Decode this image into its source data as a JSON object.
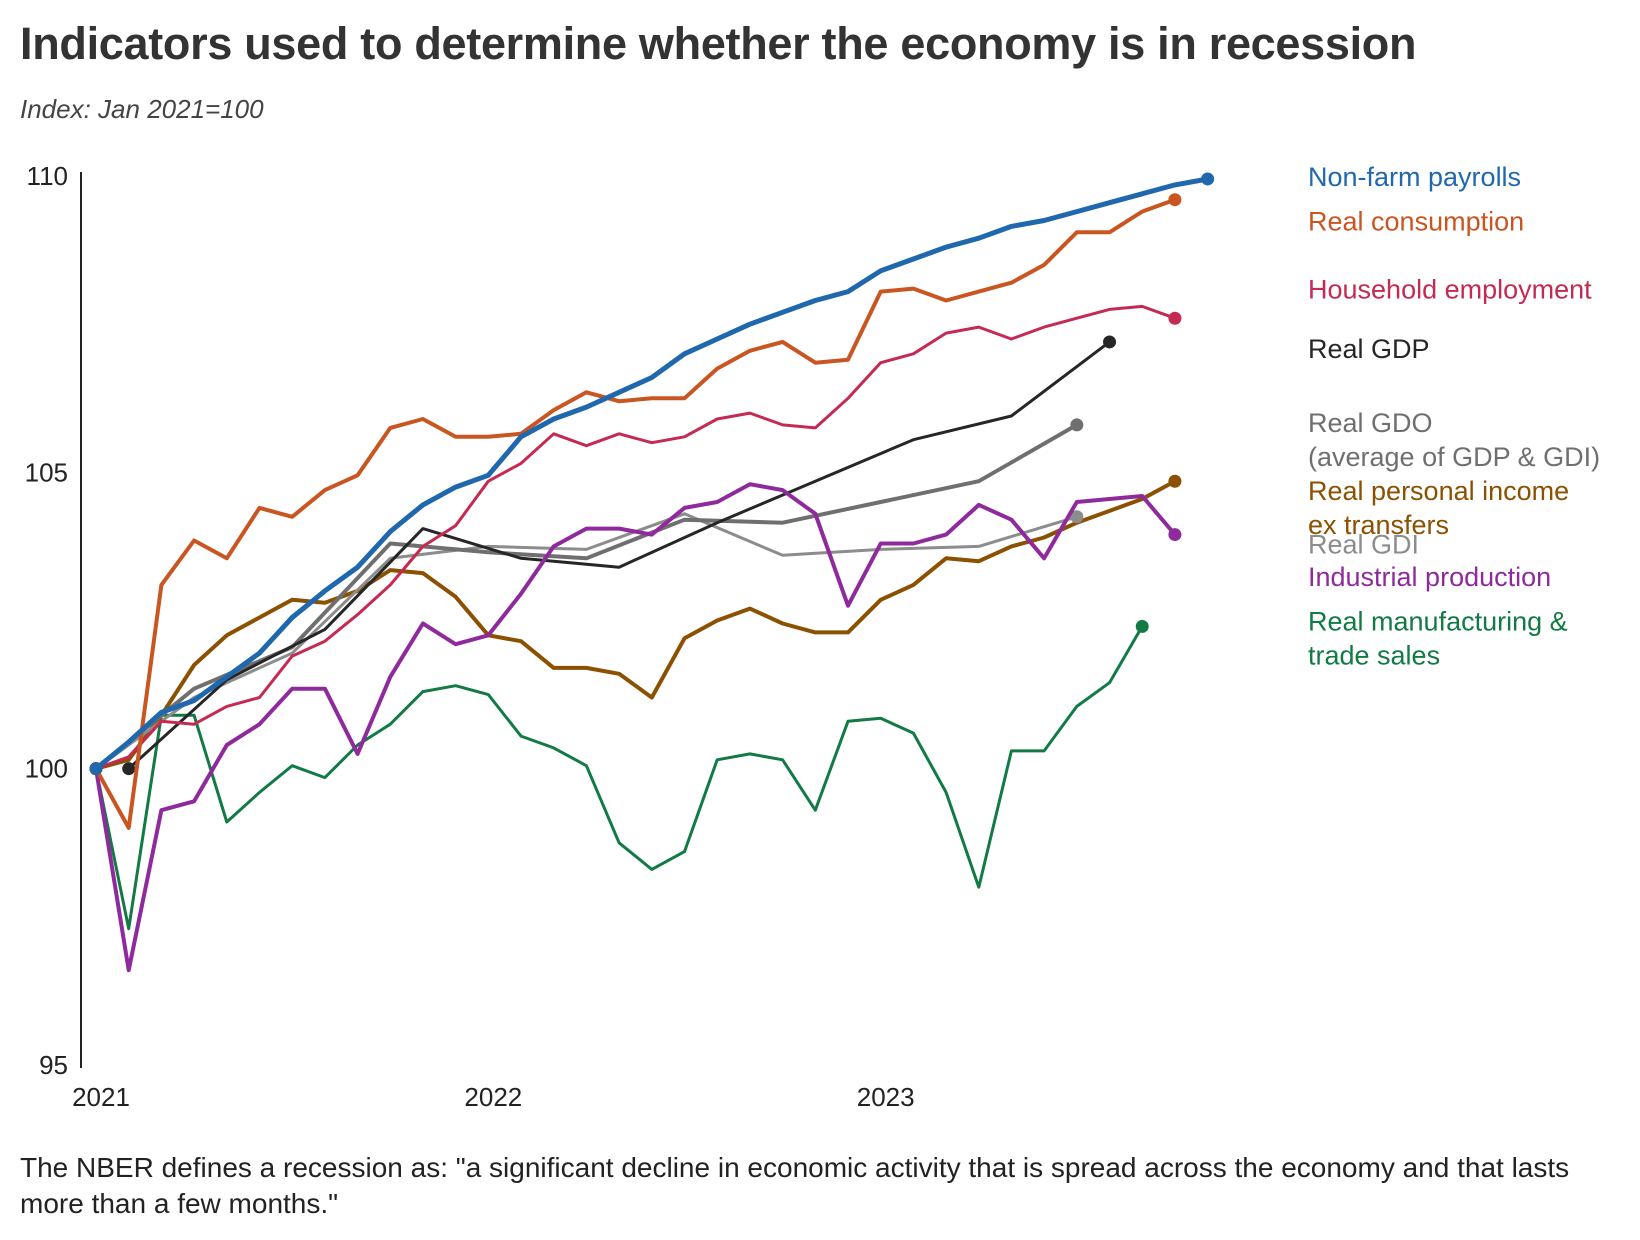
{
  "header": {
    "title": "Indicators used to determine whether the economy is in recession",
    "subtitle": "Index: Jan 2021=100"
  },
  "footnote": "The NBER defines a recession as: \"a significant decline in economic activity that is spread across the economy and that lasts more than a few months.\"",
  "chart_data": {
    "type": "line",
    "title": "Indicators used to determine whether the economy is in recession",
    "subtitle": "Index: Jan 2021=100",
    "xlabel": "",
    "ylabel": "",
    "x_unit": "months since Jan 2021",
    "xlim": [
      0,
      36
    ],
    "ylim": [
      95,
      110
    ],
    "grid": false,
    "legend": "direct labels at line ends (right)",
    "x_ticks": [
      {
        "label": "2021",
        "value": 0
      },
      {
        "label": "2022",
        "value": 12
      },
      {
        "label": "2023",
        "value": 24
      }
    ],
    "y_ticks": [
      {
        "label": "95",
        "value": 95
      },
      {
        "label": "100",
        "value": 100
      },
      {
        "label": "105",
        "value": 105
      },
      {
        "label": "110",
        "value": 110
      }
    ],
    "series": [
      {
        "name": "Real manufacturing & trade sales",
        "label_lines": [
          "Real manufacturing &",
          "trade sales"
        ],
        "label_y": 102.5,
        "color": "#127a45",
        "width": 3,
        "x": [
          0,
          1,
          2,
          3,
          4,
          5,
          6,
          7,
          8,
          9,
          10,
          11,
          12,
          13,
          14,
          15,
          16,
          17,
          18,
          19,
          20,
          21,
          22,
          23,
          24,
          25,
          26,
          27,
          28,
          29,
          30,
          31,
          32
        ],
        "values": [
          100,
          97.3,
          100.9,
          100.9,
          99.1,
          99.6,
          100.05,
          99.85,
          100.4,
          100.75,
          101.3,
          101.4,
          101.25,
          100.55,
          100.35,
          100.05,
          98.75,
          98.3,
          98.6,
          100.15,
          100.25,
          100.15,
          99.3,
          100.8,
          100.85,
          100.6,
          99.6,
          98,
          100.3,
          100.3,
          101.05,
          101.45,
          102.4
        ]
      },
      {
        "name": "Real personal income ex transfers",
        "label_lines": [
          "Real personal income",
          "ex transfers"
        ],
        "label_y": 104.7,
        "color": "#8b5000",
        "width": 4,
        "x": [
          0,
          1,
          2,
          3,
          4,
          5,
          6,
          7,
          8,
          9,
          10,
          11,
          12,
          13,
          14,
          15,
          16,
          17,
          18,
          19,
          20,
          21,
          22,
          23,
          24,
          25,
          26,
          27,
          28,
          29,
          30,
          31,
          32,
          33
        ],
        "values": [
          100,
          100.15,
          100.9,
          101.75,
          102.25,
          102.55,
          102.85,
          102.8,
          103,
          103.35,
          103.3,
          102.9,
          102.25,
          102.15,
          101.7,
          101.7,
          101.6,
          101.2,
          102.2,
          102.5,
          102.7,
          102.45,
          102.3,
          102.3,
          102.85,
          103.1,
          103.55,
          103.5,
          103.75,
          103.9,
          104.15,
          104.35,
          104.55,
          104.85
        ]
      },
      {
        "name": "Real GDI",
        "label_lines": [
          "Real GDI"
        ],
        "label_y": 103.8,
        "color": "#8c8c8c",
        "width": 3,
        "x": [
          0,
          3,
          6,
          9,
          12,
          15,
          18,
          21,
          24,
          27,
          30
        ],
        "values": [
          100,
          101.2,
          101.95,
          103.55,
          103.75,
          103.7,
          104.3,
          103.6,
          103.7,
          103.75,
          104.25
        ]
      },
      {
        "name": "Real GDO (average of GDP & GDI)",
        "label_lines": [
          "Real GDO",
          "(average of GDP & GDI)"
        ],
        "label_y": 105.85,
        "color": "#6f6f6f",
        "width": 4,
        "x": [
          0,
          3,
          6,
          9,
          12,
          15,
          18,
          21,
          24,
          27,
          30
        ],
        "values": [
          100,
          101.35,
          102.05,
          103.8,
          103.65,
          103.55,
          104.2,
          104.15,
          104.5,
          104.85,
          105.8
        ]
      },
      {
        "name": "Real GDP",
        "label_lines": [
          "Real GDP"
        ],
        "label_y": 107.1,
        "color": "#262626",
        "width": 3,
        "x": [
          1,
          4,
          7,
          10,
          13,
          16,
          19,
          22,
          25,
          28,
          31
        ],
        "values": [
          100,
          101.5,
          102.35,
          104.05,
          103.55,
          103.4,
          104.15,
          104.85,
          105.55,
          105.95,
          107.2
        ]
      },
      {
        "name": "Industrial production",
        "label_lines": [
          "Industrial production"
        ],
        "label_y": 103.25,
        "color": "#8f2a9d",
        "width": 4,
        "x": [
          0,
          1,
          2,
          3,
          4,
          5,
          6,
          7,
          8,
          9,
          10,
          11,
          12,
          13,
          14,
          15,
          16,
          17,
          18,
          19,
          20,
          21,
          22,
          23,
          24,
          25,
          26,
          27,
          28,
          29,
          30,
          31,
          32,
          33
        ],
        "values": [
          100,
          96.6,
          99.3,
          99.45,
          100.4,
          100.75,
          101.35,
          101.35,
          100.25,
          101.55,
          102.45,
          102.1,
          102.25,
          102.95,
          103.75,
          104.05,
          104.05,
          103.95,
          104.4,
          104.5,
          104.8,
          104.7,
          104.3,
          102.75,
          103.8,
          103.8,
          103.95,
          104.45,
          104.2,
          103.55,
          104.5,
          104.55,
          104.6,
          103.95
        ]
      },
      {
        "name": "Household employment",
        "label_lines": [
          "Household employment"
        ],
        "label_y": 108.1,
        "color": "#c42a52",
        "width": 3,
        "x": [
          0,
          1,
          2,
          3,
          4,
          5,
          6,
          7,
          8,
          9,
          10,
          11,
          12,
          13,
          14,
          15,
          16,
          17,
          18,
          19,
          20,
          21,
          22,
          23,
          24,
          25,
          26,
          27,
          28,
          29,
          30,
          31,
          32,
          33
        ],
        "values": [
          100,
          100.2,
          100.8,
          100.75,
          101.05,
          101.2,
          101.9,
          102.15,
          102.6,
          103.1,
          103.75,
          104.1,
          104.85,
          105.15,
          105.65,
          105.45,
          105.65,
          105.5,
          105.6,
          105.9,
          106,
          105.8,
          105.75,
          106.25,
          106.85,
          107,
          107.35,
          107.45,
          107.25,
          107.45,
          107.6,
          107.75,
          107.8,
          107.6
        ]
      },
      {
        "name": "Real consumption",
        "label_lines": [
          "Real consumption"
        ],
        "label_y": 109.25,
        "color": "#c95520",
        "width": 4,
        "x": [
          0,
          1,
          2,
          3,
          4,
          5,
          6,
          7,
          8,
          9,
          10,
          11,
          12,
          13,
          14,
          15,
          16,
          17,
          18,
          19,
          20,
          21,
          22,
          23,
          24,
          25,
          26,
          27,
          28,
          29,
          30,
          31,
          32,
          33
        ],
        "values": [
          100,
          99,
          103.1,
          103.85,
          103.55,
          104.4,
          104.25,
          104.7,
          104.95,
          105.75,
          105.9,
          105.6,
          105.6,
          105.65,
          106.05,
          106.35,
          106.2,
          106.25,
          106.25,
          106.75,
          107.05,
          107.2,
          106.85,
          106.9,
          108.05,
          108.1,
          107.9,
          108.05,
          108.2,
          108.5,
          109.05,
          109.05,
          109.4,
          109.6
        ]
      },
      {
        "name": "Non-farm payrolls",
        "label_lines": [
          "Non-farm payrolls"
        ],
        "label_y": 110,
        "color": "#1f68ae",
        "width": 5,
        "x": [
          0,
          1,
          2,
          3,
          4,
          5,
          6,
          7,
          8,
          9,
          10,
          11,
          12,
          13,
          14,
          15,
          16,
          17,
          18,
          19,
          20,
          21,
          22,
          23,
          24,
          25,
          26,
          27,
          28,
          29,
          30,
          31,
          32,
          33,
          34
        ],
        "values": [
          100,
          100.45,
          100.95,
          101.15,
          101.55,
          101.95,
          102.55,
          103,
          103.4,
          104,
          104.45,
          104.75,
          104.95,
          105.6,
          105.9,
          106.1,
          106.35,
          106.6,
          107,
          107.25,
          107.5,
          107.7,
          107.9,
          108.05,
          108.4,
          108.6,
          108.8,
          108.95,
          109.15,
          109.25,
          109.4,
          109.55,
          109.7,
          109.85,
          109.95
        ]
      }
    ]
  }
}
